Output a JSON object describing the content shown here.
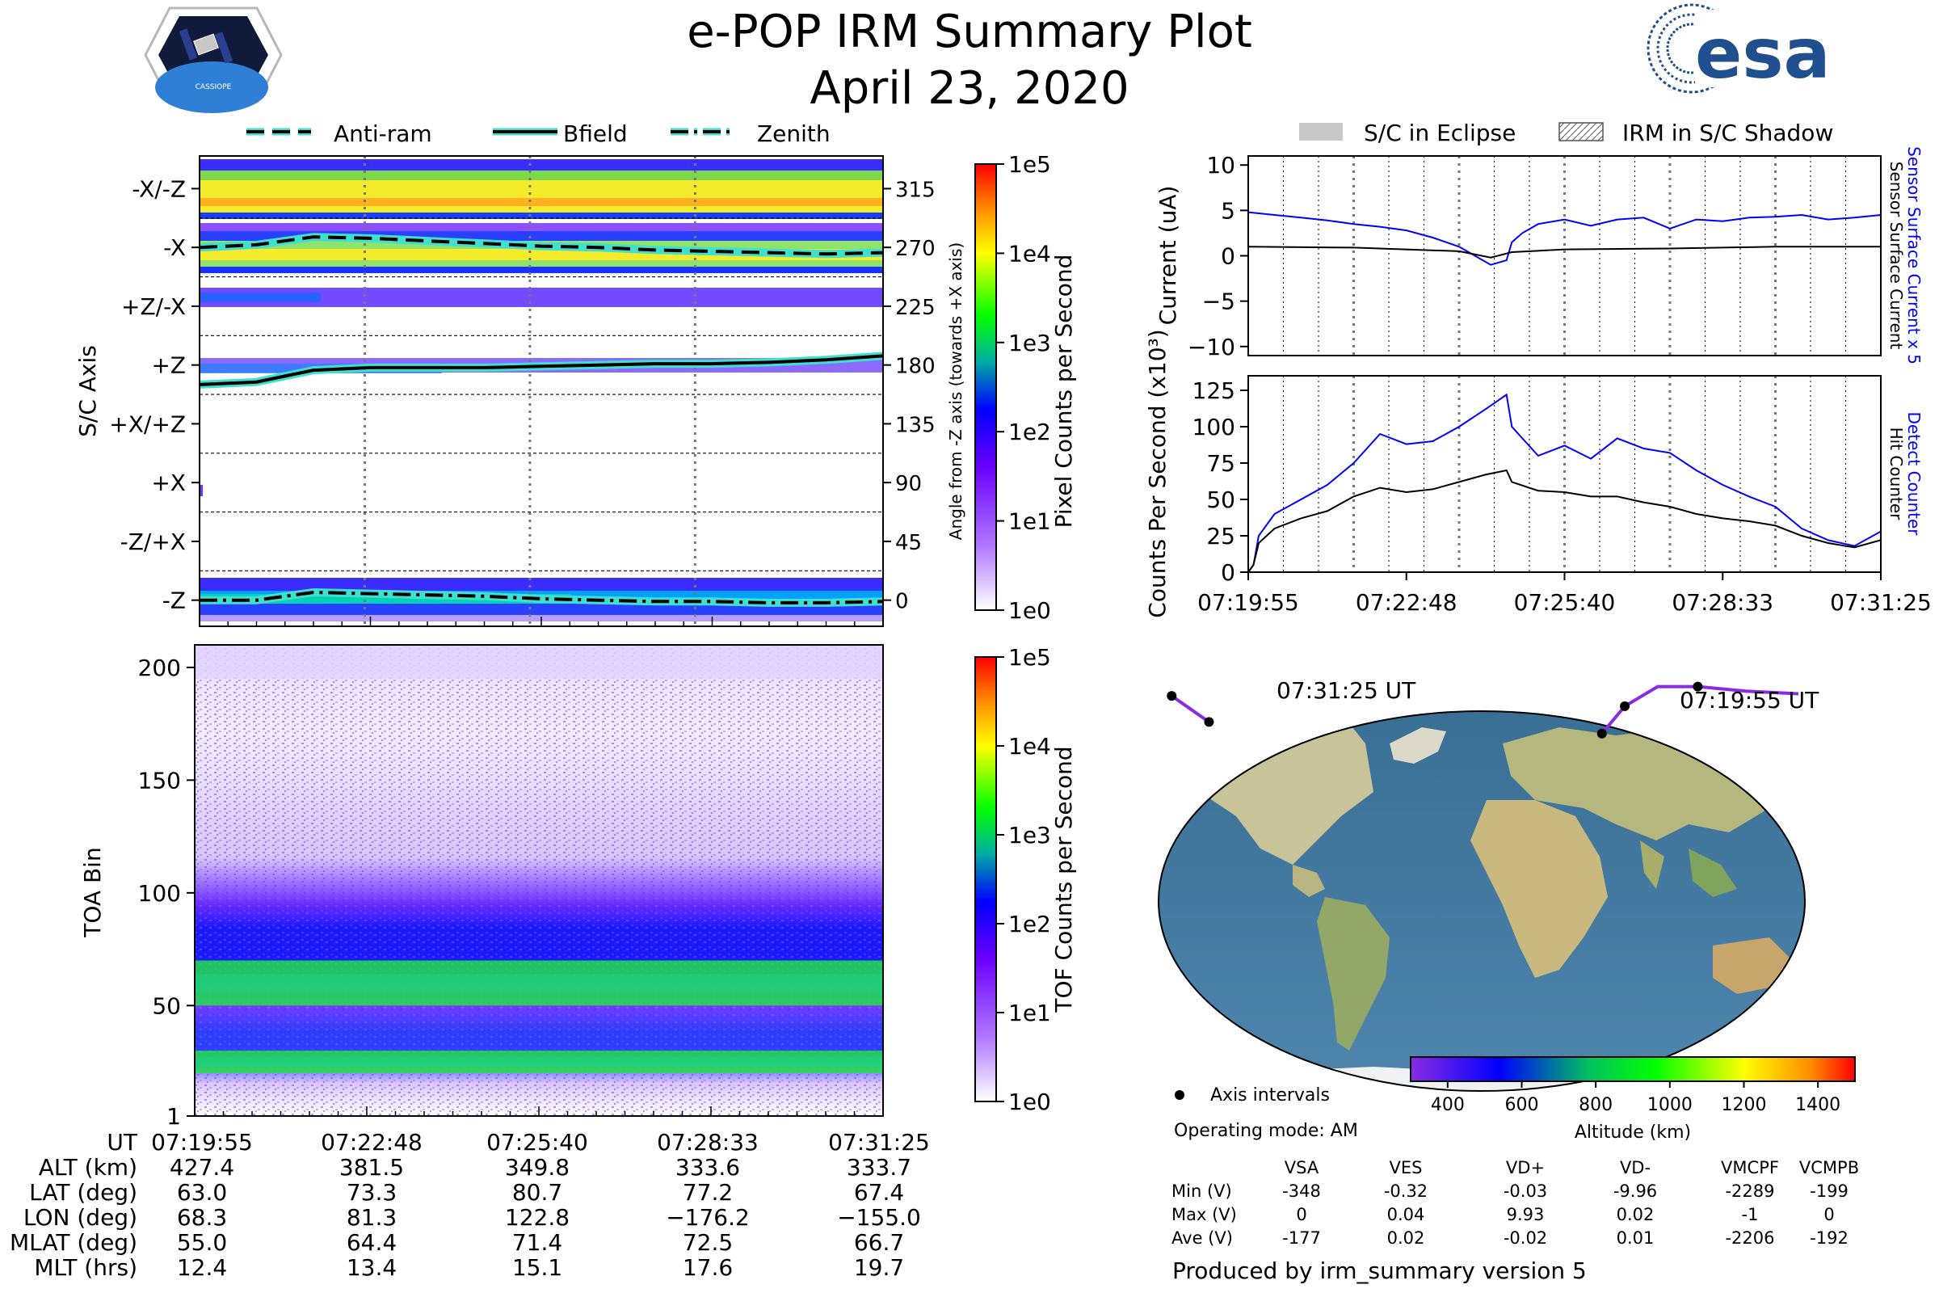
{
  "header": {
    "title": "e-POP IRM Summary Plot",
    "date": "April 23, 2020",
    "mission_badge_text": "CASSIOPE",
    "agency_logo_text": "esa"
  },
  "colors": {
    "antiram": "#000000",
    "bfield": "#000000",
    "glow": "#40e0d0",
    "sensor_current": "#0000ff",
    "hit_counter": "#000000",
    "eclipse_patch": "#c8c8c8",
    "orbit_track": "#8a2be2"
  },
  "legend_top_left": {
    "antiram": "Anti-ram",
    "bfield": "Bfield",
    "zenith": "Zenith"
  },
  "legend_top_right": {
    "eclipse": "S/C in Eclipse",
    "shadow": "IRM in S/C Shadow"
  },
  "chart_data": [
    {
      "id": "pixel-panel",
      "type": "heatmap",
      "ylabel": "S/C Axis",
      "ylabel_right": "Angle from -Z axis (towards +X axis)",
      "axis_labels": [
        "-X/-Z",
        "-X",
        "+Z/-X",
        "+Z",
        "+X/+Z",
        "+X",
        "-Z/+X",
        "-Z"
      ],
      "angle_ticks": [
        315,
        270,
        225,
        180,
        135,
        90,
        45,
        0
      ],
      "ylim": [
        -20,
        340
      ],
      "colorbar": {
        "label": "Pixel Counts per Second",
        "ticks": [
          "1e5",
          "1e4",
          "1e3",
          "1e2",
          "1e1",
          "1e0"
        ]
      },
      "series": [
        {
          "name": "Anti-ram",
          "t": [
            0,
            1,
            2,
            3,
            4,
            5,
            6,
            7,
            8,
            9,
            10,
            11,
            12
          ],
          "angle": [
            270,
            272,
            278,
            277,
            275,
            273,
            271,
            270,
            268,
            267,
            266,
            265,
            266
          ]
        },
        {
          "name": "Bfield",
          "t": [
            0,
            1,
            2,
            3,
            4,
            5,
            6,
            7,
            8,
            9,
            10,
            11,
            12
          ],
          "angle": [
            165,
            167,
            176,
            178,
            178,
            178,
            179,
            180,
            181,
            181,
            182,
            184,
            187
          ]
        },
        {
          "name": "Zenith",
          "t": [
            0,
            1,
            2,
            3,
            4,
            5,
            6,
            7,
            8,
            9,
            10,
            11,
            12
          ],
          "angle": [
            0,
            0,
            6,
            5,
            4,
            3,
            1,
            0,
            -1,
            -1,
            -2,
            -2,
            -1
          ]
        }
      ]
    },
    {
      "id": "tof-panel",
      "type": "heatmap",
      "ylabel": "TOA Bin",
      "yticks": [
        "200",
        "150",
        "100",
        "50",
        "1"
      ],
      "ylim": [
        1,
        210
      ],
      "bands": [
        {
          "name": "main",
          "center_bin": 60,
          "half_width_bins": 10
        },
        {
          "name": "lower",
          "center_bin": 25,
          "half_width_bins": 5
        }
      ],
      "colorbar": {
        "label": "TOF Counts per Second",
        "ticks": [
          "1e5",
          "1e4",
          "1e3",
          "1e2",
          "1e1",
          "1e0"
        ]
      }
    },
    {
      "id": "current-panel",
      "type": "line",
      "ylabel": "Current (uA)",
      "yticks": [
        "10",
        "5",
        "0",
        "−5",
        "−10"
      ],
      "ylim": [
        -11,
        11
      ],
      "right_label_a": "Sensor Surface Current x 5",
      "right_label_b": "Sensor Surface Current",
      "series": [
        {
          "name": "Sensor Surface Current x 5",
          "t": [
            0,
            0.5,
            1,
            1.5,
            2,
            2.5,
            3,
            3.5,
            4,
            4.3,
            4.6,
            4.9,
            5,
            5.2,
            5.5,
            6,
            6.5,
            7,
            7.5,
            8,
            8.5,
            9,
            9.5,
            10,
            10.5,
            11,
            11.5,
            12
          ],
          "values": [
            4.8,
            4.5,
            4.2,
            3.9,
            3.5,
            3.2,
            2.8,
            2.0,
            1.0,
            0.0,
            -1.0,
            -0.5,
            1.5,
            2.5,
            3.5,
            4.0,
            3.3,
            4.0,
            4.2,
            3.0,
            4.0,
            3.8,
            4.2,
            4.3,
            4.5,
            4.0,
            4.2,
            4.5
          ]
        },
        {
          "name": "Sensor Surface Current",
          "t": [
            0,
            2,
            4,
            4.6,
            5,
            6,
            8,
            10,
            12
          ],
          "values": [
            1.0,
            0.9,
            0.5,
            -0.2,
            0.4,
            0.7,
            0.8,
            1.0,
            1.0
          ]
        }
      ]
    },
    {
      "id": "counts-panel",
      "type": "line",
      "ylabel": "Counts Per Second (x10³)",
      "yticks": [
        "125",
        "100",
        "75",
        "50",
        "25",
        "0"
      ],
      "ylim": [
        0,
        135
      ],
      "right_label_a": "Detect Counter",
      "right_label_b": "Hit Counter",
      "xticks": [
        "07:19:55",
        "07:22:48",
        "07:25:40",
        "07:28:33",
        "07:31:25"
      ],
      "series": [
        {
          "name": "Detect Counter",
          "t": [
            0,
            0.1,
            0.2,
            0.5,
            1,
            1.5,
            2,
            2.5,
            3,
            3.5,
            4,
            4.5,
            4.9,
            5,
            5.5,
            6,
            6.5,
            7,
            7.5,
            8,
            8.5,
            9,
            9.5,
            10,
            10.5,
            11,
            11.5,
            12
          ],
          "values": [
            0,
            5,
            25,
            40,
            50,
            60,
            75,
            95,
            88,
            90,
            100,
            112,
            122,
            100,
            80,
            87,
            78,
            92,
            85,
            82,
            70,
            60,
            52,
            45,
            30,
            22,
            18,
            28
          ]
        },
        {
          "name": "Hit Counter",
          "t": [
            0,
            0.1,
            0.2,
            0.5,
            1,
            1.5,
            2,
            2.5,
            3,
            3.5,
            4,
            4.5,
            4.9,
            5,
            5.5,
            6,
            6.5,
            7,
            7.5,
            8,
            8.5,
            9,
            9.5,
            10,
            10.5,
            11,
            11.5,
            12
          ],
          "values": [
            0,
            5,
            20,
            30,
            37,
            42,
            52,
            58,
            55,
            57,
            62,
            67,
            70,
            62,
            56,
            55,
            52,
            52,
            48,
            45,
            40,
            37,
            35,
            32,
            25,
            20,
            17,
            22
          ]
        }
      ]
    },
    {
      "id": "orbit-map",
      "type": "map",
      "labels": [
        "07:31:25 UT",
        "07:19:55 UT"
      ],
      "colorbar": {
        "label": "Altitude (km)",
        "ticks": [
          "400",
          "600",
          "800",
          "1000",
          "1200",
          "1400"
        ],
        "range": [
          300,
          1500
        ]
      },
      "legend": "Axis intervals",
      "operating_mode": "Operating mode: AM",
      "track": {
        "lon": [
          68.3,
          81.3,
          100,
          122.8,
          150,
          180
        ],
        "lat": [
          63.0,
          73.3,
          80.7,
          80.7,
          79,
          78
        ]
      },
      "track_west": {
        "lon": [
          -176.2,
          -165,
          -155.0
        ],
        "lat": [
          77.2,
          72,
          67.4
        ]
      },
      "interval_points": [
        {
          "lon": 68.3,
          "lat": 63.0
        },
        {
          "lon": 81.3,
          "lat": 73.3
        },
        {
          "lon": 122.8,
          "lat": 80.7
        },
        {
          "lon": -176.2,
          "lat": 77.2
        },
        {
          "lon": -155.0,
          "lat": 67.4
        }
      ]
    }
  ],
  "time_axis": {
    "ticks": [
      "07:19:55",
      "07:22:48",
      "07:25:40",
      "07:28:33",
      "07:31:25"
    ]
  },
  "ephemeris": {
    "row_labels": [
      "UT",
      "ALT (km)",
      "LAT (deg)",
      "LON (deg)",
      "MLAT (deg)",
      "MLT (hrs)"
    ],
    "columns": [
      [
        "07:19:55",
        "427.4",
        "63.0",
        "68.3",
        "55.0",
        "12.4"
      ],
      [
        "07:22:48",
        "381.5",
        "73.3",
        "81.3",
        "64.4",
        "13.4"
      ],
      [
        "07:25:40",
        "349.8",
        "80.7",
        "122.8",
        "71.4",
        "15.1"
      ],
      [
        "07:28:33",
        "333.6",
        "77.2",
        "−176.2",
        "72.5",
        "17.6"
      ],
      [
        "07:31:25",
        "333.7",
        "67.4",
        "−155.0",
        "66.7",
        "19.7"
      ]
    ]
  },
  "voltages": {
    "headers": [
      "VSA",
      "VES",
      "VD+",
      "VD-",
      "VMCPF",
      "VCMPB"
    ],
    "rows": [
      {
        "label": "Min (V)",
        "values": [
          "-348",
          "-0.32",
          "-0.03",
          "-9.96",
          "-2289",
          "-199"
        ]
      },
      {
        "label": "Max (V)",
        "values": [
          "0",
          "0.04",
          "9.93",
          "0.02",
          "-1",
          "0"
        ]
      },
      {
        "label": "Ave (V)",
        "values": [
          "-177",
          "0.02",
          "-0.02",
          "0.01",
          "-2206",
          "-192"
        ]
      }
    ]
  },
  "footer": {
    "produced_by": "Produced by irm_summary version 5"
  }
}
